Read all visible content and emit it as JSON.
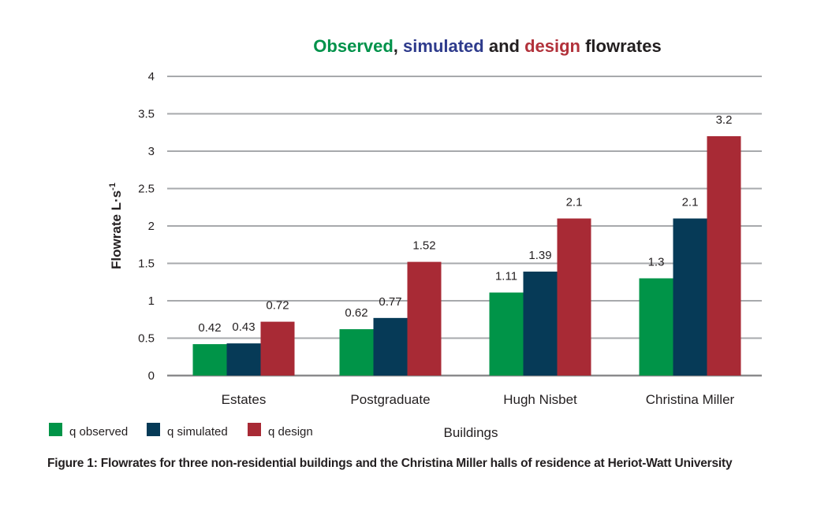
{
  "chart_data": {
    "type": "bar",
    "title_parts": [
      {
        "text": "Observed",
        "color": "#00924a"
      },
      {
        "text": ", ",
        "color": "#231f20"
      },
      {
        "text": "simulated",
        "color": "#2e3b8c"
      },
      {
        "text": " and ",
        "color": "#231f20"
      },
      {
        "text": "design",
        "color": "#b2323b"
      },
      {
        "text": " flowrates",
        "color": "#231f20"
      }
    ],
    "categories": [
      "Estates",
      "Postgraduate",
      "Hugh Nisbet",
      "Christina Miller"
    ],
    "series": [
      {
        "name": "q observed",
        "color": "#009448",
        "values": [
          0.42,
          0.62,
          1.11,
          1.3
        ]
      },
      {
        "name": "q simulated",
        "color": "#063a57",
        "values": [
          0.43,
          0.77,
          1.39,
          2.1
        ]
      },
      {
        "name": "q design",
        "color": "#a82a35",
        "values": [
          0.72,
          1.52,
          2.1,
          3.2
        ]
      }
    ],
    "ylabel_main": "Flowrate L·s",
    "ylabel_sup": "-1",
    "xlabel": "Buildings",
    "ylim": [
      0,
      4
    ],
    "yticks": [
      0,
      0.5,
      1,
      1.5,
      2,
      2.5,
      3,
      3.5,
      4
    ],
    "grid": true,
    "legend_position": "bottom-left"
  },
  "caption": "Figure 1: Flowrates for three non-residential buildings and the Christina Miller halls of residence at Heriot-Watt University"
}
